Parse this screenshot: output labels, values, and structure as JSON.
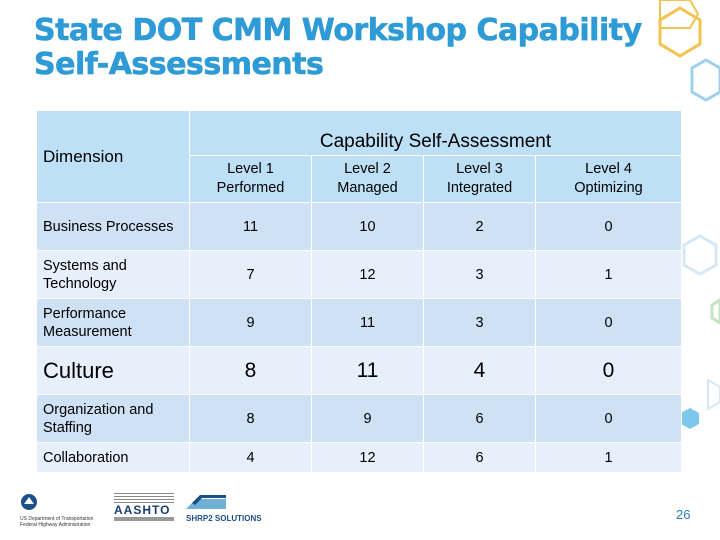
{
  "slide": {
    "title": "State DOT CMM Workshop Capability Self-Assessments",
    "page_number": "26"
  },
  "table": {
    "dimension_header": "Dimension",
    "group_header": "Capability Self-Assessment",
    "levels": [
      {
        "line1": "Level 1",
        "line2": "Performed"
      },
      {
        "line1": "Level 2",
        "line2": "Managed"
      },
      {
        "line1": "Level 3",
        "line2": "Integrated"
      },
      {
        "line1": "Level 4",
        "line2": "Optimizing"
      }
    ],
    "rows": [
      {
        "label": "Business Processes",
        "values": [
          "11",
          "10",
          "2",
          "0"
        ]
      },
      {
        "label": "Systems and Technology",
        "values": [
          "7",
          "12",
          "3",
          "1"
        ]
      },
      {
        "label": "Performance Measurement",
        "values": [
          "9",
          "11",
          "3",
          "0"
        ]
      },
      {
        "label": "Culture",
        "values": [
          "8",
          "11",
          "4",
          "0"
        ]
      },
      {
        "label": "Organization and Staffing",
        "values": [
          "8",
          "9",
          "6",
          "0"
        ]
      },
      {
        "label": "Collaboration",
        "values": [
          "4",
          "12",
          "6",
          "1"
        ]
      }
    ]
  },
  "footer": {
    "fhwa_line1": "US Department of Transportation",
    "fhwa_line2": "Federal Highway Administration",
    "aashto": "AASHTO",
    "shrp2": "SHRP2 SOLUTIONS"
  },
  "colors": {
    "title": "#2e9bd6",
    "header_fill": "#bde0f6",
    "row_dark": "#cfe2f5",
    "row_light": "#e7f0fa",
    "hex_outline": "#f2c44e"
  }
}
